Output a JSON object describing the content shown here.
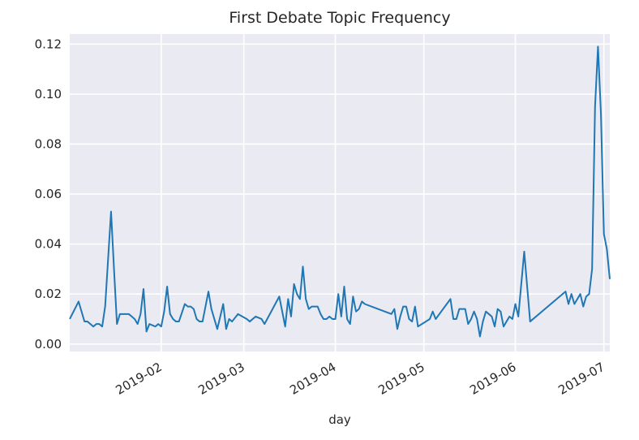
{
  "chart_data": {
    "type": "line",
    "title": "First Debate Topic Frequency",
    "xlabel": "day",
    "ylabel": "",
    "xlim": [
      "2019-01-01",
      "2019-07-03"
    ],
    "ylim": [
      -0.003,
      0.124
    ],
    "grid": true,
    "legend": "none",
    "x_ticks": [
      "2019-02-01",
      "2019-03-01",
      "2019-04-01",
      "2019-05-01",
      "2019-06-01",
      "2019-07-01"
    ],
    "x_tick_labels": [
      "2019-02",
      "2019-03",
      "2019-04",
      "2019-05",
      "2019-06",
      "2019-07"
    ],
    "y_ticks": [
      0.0,
      0.02,
      0.04,
      0.06,
      0.08,
      0.1,
      0.12
    ],
    "y_tick_labels": [
      "0.00",
      "0.02",
      "0.04",
      "0.06",
      "0.08",
      "0.10",
      "0.12"
    ],
    "series": [
      {
        "color": "#1f77b4",
        "x": [
          "2019-01-01",
          "2019-01-04",
          "2019-01-05",
          "2019-01-06",
          "2019-01-07",
          "2019-01-08",
          "2019-01-09",
          "2019-01-10",
          "2019-01-11",
          "2019-01-12",
          "2019-01-13",
          "2019-01-15",
          "2019-01-16",
          "2019-01-17",
          "2019-01-18",
          "2019-01-19",
          "2019-01-20",
          "2019-01-21",
          "2019-01-22",
          "2019-01-23",
          "2019-01-24",
          "2019-01-25",
          "2019-01-26",
          "2019-01-27",
          "2019-01-28",
          "2019-01-30",
          "2019-01-31",
          "2019-02-01",
          "2019-02-02",
          "2019-02-03",
          "2019-02-04",
          "2019-02-05",
          "2019-02-06",
          "2019-02-07",
          "2019-02-09",
          "2019-02-10",
          "2019-02-11",
          "2019-02-12",
          "2019-02-13",
          "2019-02-14",
          "2019-02-15",
          "2019-02-16",
          "2019-02-17",
          "2019-02-18",
          "2019-02-20",
          "2019-02-22",
          "2019-02-23",
          "2019-02-24",
          "2019-02-25",
          "2019-02-27",
          "2019-03-02",
          "2019-03-03",
          "2019-03-05",
          "2019-03-07",
          "2019-03-08",
          "2019-03-13",
          "2019-03-15",
          "2019-03-16",
          "2019-03-17",
          "2019-03-18",
          "2019-03-19",
          "2019-03-20",
          "2019-03-21",
          "2019-03-22",
          "2019-03-23",
          "2019-03-24",
          "2019-03-25",
          "2019-03-26",
          "2019-03-27",
          "2019-03-28",
          "2019-03-29",
          "2019-03-30",
          "2019-03-31",
          "2019-04-01",
          "2019-04-02",
          "2019-04-03",
          "2019-04-04",
          "2019-04-05",
          "2019-04-06",
          "2019-04-07",
          "2019-04-08",
          "2019-04-09",
          "2019-04-10",
          "2019-04-11",
          "2019-04-20",
          "2019-04-21",
          "2019-04-22",
          "2019-04-23",
          "2019-04-24",
          "2019-04-25",
          "2019-04-26",
          "2019-04-27",
          "2019-04-28",
          "2019-04-29",
          "2019-05-03",
          "2019-05-04",
          "2019-05-05",
          "2019-05-10",
          "2019-05-11",
          "2019-05-12",
          "2019-05-13",
          "2019-05-14",
          "2019-05-15",
          "2019-05-16",
          "2019-05-17",
          "2019-05-18",
          "2019-05-19",
          "2019-05-20",
          "2019-05-21",
          "2019-05-22",
          "2019-05-23",
          "2019-05-24",
          "2019-05-25",
          "2019-05-26",
          "2019-05-27",
          "2019-05-28",
          "2019-05-29",
          "2019-05-30",
          "2019-05-31",
          "2019-06-01",
          "2019-06-02",
          "2019-06-04",
          "2019-06-06",
          "2019-06-18",
          "2019-06-19",
          "2019-06-20",
          "2019-06-21",
          "2019-06-22",
          "2019-06-23",
          "2019-06-24",
          "2019-06-25",
          "2019-06-26",
          "2019-06-27",
          "2019-06-28",
          "2019-06-29",
          "2019-06-30",
          "2019-07-01",
          "2019-07-02",
          "2019-07-03"
        ],
        "y": [
          0.01,
          0.017,
          0.013,
          0.009,
          0.009,
          0.008,
          0.007,
          0.008,
          0.008,
          0.007,
          0.015,
          0.053,
          0.03,
          0.008,
          0.012,
          0.012,
          0.012,
          0.012,
          0.011,
          0.01,
          0.008,
          0.012,
          0.022,
          0.005,
          0.008,
          0.007,
          0.008,
          0.007,
          0.013,
          0.023,
          0.012,
          0.01,
          0.009,
          0.009,
          0.016,
          0.015,
          0.015,
          0.014,
          0.01,
          0.009,
          0.009,
          0.015,
          0.021,
          0.014,
          0.006,
          0.016,
          0.006,
          0.01,
          0.009,
          0.012,
          0.01,
          0.009,
          0.011,
          0.01,
          0.008,
          0.019,
          0.007,
          0.018,
          0.011,
          0.024,
          0.02,
          0.018,
          0.031,
          0.018,
          0.014,
          0.015,
          0.015,
          0.015,
          0.012,
          0.01,
          0.01,
          0.011,
          0.01,
          0.01,
          0.02,
          0.011,
          0.023,
          0.01,
          0.008,
          0.019,
          0.013,
          0.014,
          0.017,
          0.016,
          0.012,
          0.014,
          0.006,
          0.011,
          0.015,
          0.015,
          0.01,
          0.009,
          0.015,
          0.007,
          0.01,
          0.013,
          0.01,
          0.018,
          0.01,
          0.01,
          0.014,
          0.014,
          0.014,
          0.008,
          0.01,
          0.013,
          0.01,
          0.003,
          0.009,
          0.013,
          0.012,
          0.011,
          0.007,
          0.014,
          0.013,
          0.007,
          0.009,
          0.011,
          0.01,
          0.016,
          0.011,
          0.037,
          0.009,
          0.021,
          0.016,
          0.02,
          0.016,
          0.018,
          0.02,
          0.015,
          0.019,
          0.02,
          0.03,
          0.095,
          0.119,
          0.092,
          0.044,
          0.038,
          0.026
        ]
      }
    ]
  }
}
